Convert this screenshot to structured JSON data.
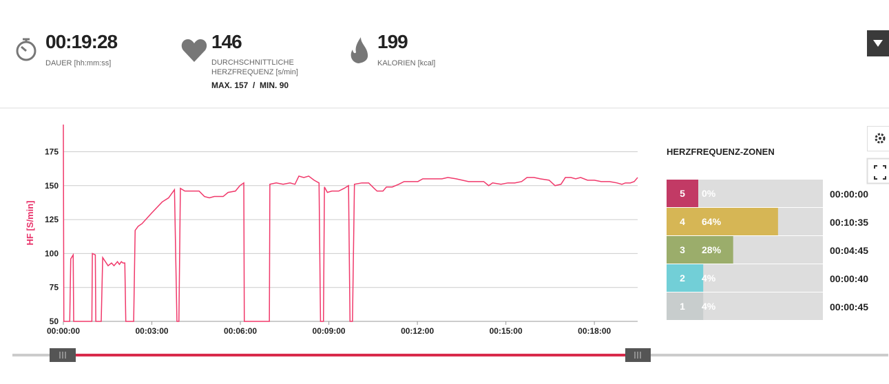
{
  "stats": [
    {
      "value": "00:19:28",
      "label": "DAUER [hh:mm:ss]"
    },
    {
      "value": "146",
      "label": "DURCHSCHNITTLICHE HERZFREQUENZ [s/min]",
      "extra": "MAX. 157  /  MIN. 90"
    },
    {
      "value": "199",
      "label": "KALORIEN [kcal]"
    }
  ],
  "chart_data": {
    "type": "line",
    "ylabel": "HF [S/min]",
    "color": "#f0386a",
    "grid": true,
    "xlim": [
      0,
      1168
    ],
    "ylim": [
      50,
      195
    ],
    "yticks": [
      50,
      75,
      100,
      125,
      150,
      175
    ],
    "xticks": [
      {
        "value": 0,
        "label": "00:00:00"
      },
      {
        "value": 180,
        "label": "00:03:00"
      },
      {
        "value": 360,
        "label": "00:06:00"
      },
      {
        "value": 540,
        "label": "00:09:00"
      },
      {
        "value": 720,
        "label": "00:12:00"
      },
      {
        "value": 900,
        "label": "00:15:00"
      },
      {
        "value": 1080,
        "label": "00:18:00"
      }
    ],
    "x": [
      0,
      1,
      13,
      15,
      20,
      21,
      58,
      59,
      65,
      66,
      77,
      80,
      91,
      98,
      103,
      110,
      114,
      118,
      121,
      125,
      127,
      143,
      146,
      152,
      160,
      180,
      201,
      214,
      226,
      231,
      235,
      238,
      247,
      276,
      287,
      297,
      307,
      325,
      335,
      350,
      359,
      367,
      368,
      419,
      420,
      433,
      447,
      461,
      471,
      479,
      489,
      499,
      510,
      520,
      523,
      529,
      531,
      537,
      546,
      560,
      571,
      580,
      583,
      588,
      592,
      607,
      621,
      632,
      638,
      650,
      657,
      669,
      682,
      693,
      721,
      731,
      770,
      782,
      799,
      824,
      855,
      865,
      873,
      890,
      904,
      918,
      932,
      943,
      957,
      970,
      988,
      1000,
      1012,
      1021,
      1032,
      1042,
      1052,
      1066,
      1080,
      1094,
      1111,
      1126,
      1136,
      1143,
      1153,
      1161,
      1168
    ],
    "values": [
      195,
      50,
      50,
      96,
      99,
      50,
      50,
      100,
      99,
      50,
      50,
      97,
      91,
      93,
      91,
      94,
      92,
      94,
      93,
      93,
      50,
      50,
      117,
      120,
      122,
      130,
      138,
      141,
      147,
      50,
      50,
      148,
      146,
      146,
      142,
      141,
      142,
      142,
      145,
      146,
      150,
      152,
      50,
      50,
      151,
      152,
      151,
      152,
      151,
      157,
      156,
      157,
      154,
      152,
      50,
      50,
      149,
      145,
      146,
      146,
      148,
      150,
      50,
      50,
      151,
      152,
      152,
      148,
      146,
      146,
      149,
      149,
      151,
      153,
      153,
      155,
      155,
      156,
      155,
      153,
      153,
      150,
      152,
      151,
      152,
      152,
      153,
      156,
      156,
      155,
      154,
      150,
      151,
      156,
      156,
      155,
      156,
      154,
      154,
      153,
      153,
      152,
      151,
      152,
      152,
      153,
      156
    ]
  },
  "zones": {
    "title": "HERZFREQUENZ-ZONEN",
    "rows": [
      {
        "zone": 5,
        "value": 0,
        "value_label": "0%",
        "time": "00:00:00",
        "color": "#c23a65"
      },
      {
        "zone": 4,
        "value": 64,
        "value_label": "64%",
        "time": "00:10:35",
        "color": "#d6b655"
      },
      {
        "zone": 3,
        "value": 28,
        "value_label": "28%",
        "time": "00:04:45",
        "color": "#9bad6b"
      },
      {
        "zone": 2,
        "value": 4,
        "value_label": "4%",
        "time": "00:00:40",
        "color": "#72cfd7"
      },
      {
        "zone": 1,
        "value": 4,
        "value_label": "4%",
        "time": "00:00:45",
        "color": "#c8cdcd"
      }
    ]
  }
}
